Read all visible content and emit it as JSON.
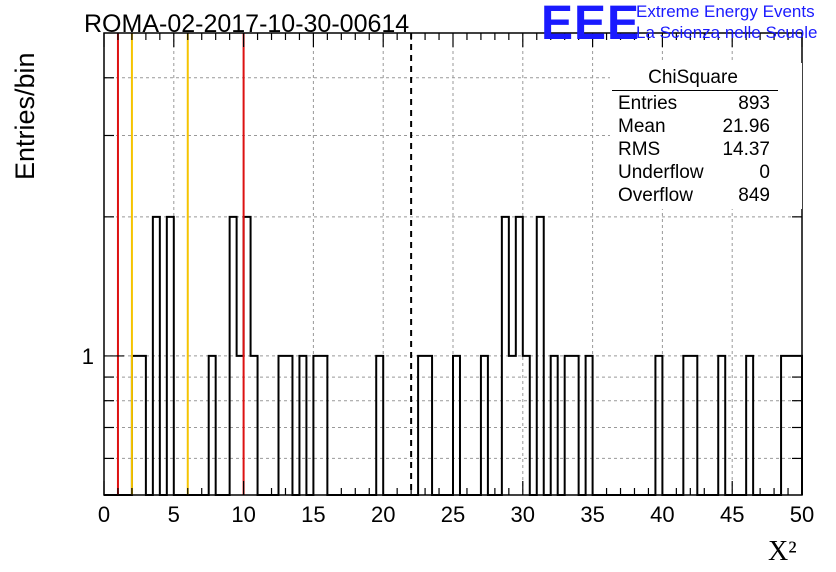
{
  "run_title": "ROMA-02-2017-10-30-00614",
  "logo": {
    "mark": "EEE",
    "line1": "Extreme Energy Events",
    "line2": "La Scienza nelle Scuole"
  },
  "stats_box": {
    "title": "ChiSquare",
    "rows": [
      {
        "label": "Entries",
        "value": "893"
      },
      {
        "label": "Mean",
        "value": "21.96"
      },
      {
        "label": "RMS",
        "value": "14.37"
      },
      {
        "label": "Underflow",
        "value": "0"
      },
      {
        "label": "Overflow",
        "value": "849"
      }
    ]
  },
  "colors": {
    "red_lines": "#dd1111",
    "yellow_lines": "#f5c400",
    "grid": "#999999",
    "logo": "#1a1aff"
  },
  "chart_data": {
    "type": "bar",
    "histogram": "step",
    "title": "ROMA-02-2017-10-30-00614",
    "xlabel": "X²",
    "ylabel": "Entries/bin",
    "xlim": [
      0,
      50
    ],
    "ylim": [
      0.5,
      5
    ],
    "y_log_scale": true,
    "grid": true,
    "bin_width": 0.5,
    "x_ticks": [
      0,
      5,
      10,
      15,
      20,
      25,
      30,
      35,
      40,
      45,
      50
    ],
    "x_tick_labels": [
      "0",
      "5",
      "10",
      "15",
      "20",
      "25",
      "30",
      "35",
      "40",
      "45",
      "50"
    ],
    "y_ticks": [
      1
    ],
    "y_tick_labels": [
      "1"
    ],
    "bins": [
      {
        "x": 2.0,
        "count": 1
      },
      {
        "x": 2.5,
        "count": 1
      },
      {
        "x": 3.5,
        "count": 2
      },
      {
        "x": 4.5,
        "count": 2
      },
      {
        "x": 7.5,
        "count": 1
      },
      {
        "x": 9.0,
        "count": 2
      },
      {
        "x": 9.5,
        "count": 1
      },
      {
        "x": 10.0,
        "count": 2
      },
      {
        "x": 10.5,
        "count": 1
      },
      {
        "x": 12.5,
        "count": 1
      },
      {
        "x": 13.0,
        "count": 1
      },
      {
        "x": 14.0,
        "count": 1
      },
      {
        "x": 15.0,
        "count": 1
      },
      {
        "x": 15.5,
        "count": 1
      },
      {
        "x": 19.5,
        "count": 1
      },
      {
        "x": 22.5,
        "count": 1
      },
      {
        "x": 23.0,
        "count": 1
      },
      {
        "x": 25.0,
        "count": 1
      },
      {
        "x": 27.0,
        "count": 1
      },
      {
        "x": 28.5,
        "count": 2
      },
      {
        "x": 29.0,
        "count": 1
      },
      {
        "x": 29.5,
        "count": 2
      },
      {
        "x": 30.0,
        "count": 1
      },
      {
        "x": 31.0,
        "count": 2
      },
      {
        "x": 32.0,
        "count": 1
      },
      {
        "x": 33.0,
        "count": 1
      },
      {
        "x": 33.5,
        "count": 1
      },
      {
        "x": 34.5,
        "count": 1
      },
      {
        "x": 39.5,
        "count": 1
      },
      {
        "x": 41.5,
        "count": 1
      },
      {
        "x": 42.0,
        "count": 1
      },
      {
        "x": 44.0,
        "count": 1
      },
      {
        "x": 46.0,
        "count": 1
      },
      {
        "x": 48.5,
        "count": 1
      },
      {
        "x": 49.0,
        "count": 1
      },
      {
        "x": 49.5,
        "count": 1
      }
    ],
    "vertical_lines": [
      {
        "x": 1,
        "color": "red",
        "style": "solid"
      },
      {
        "x": 2,
        "color": "yellow",
        "style": "solid"
      },
      {
        "x": 6,
        "color": "yellow",
        "style": "solid"
      },
      {
        "x": 10,
        "color": "red",
        "style": "solid"
      },
      {
        "x": 22,
        "color": "black",
        "style": "dashed"
      }
    ]
  }
}
